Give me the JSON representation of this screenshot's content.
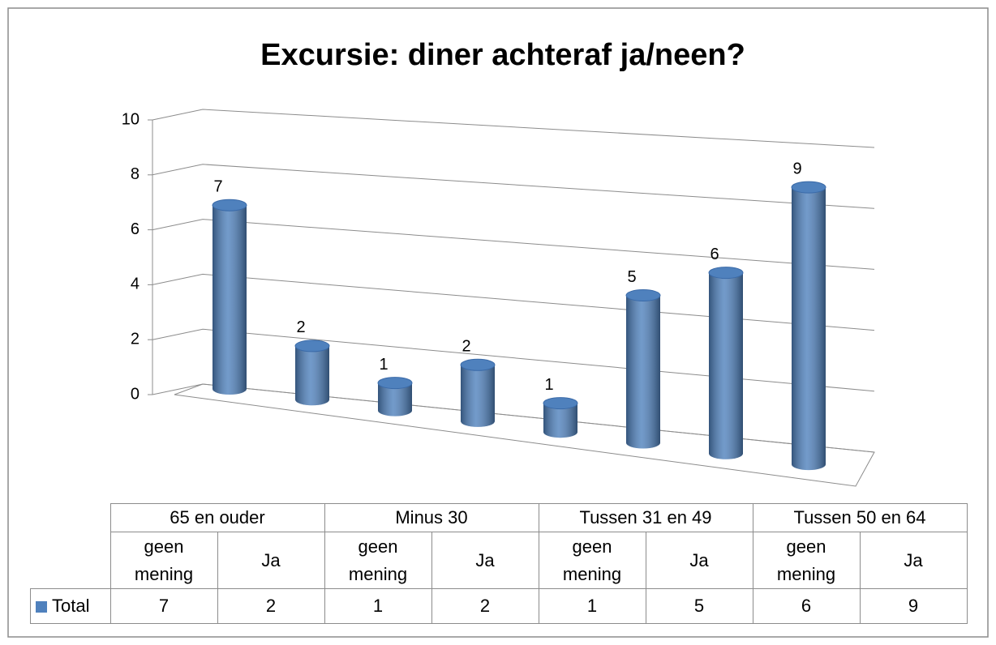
{
  "chart_data": {
    "type": "bar3d",
    "title": "Excursie: diner achteraf ja/neen?",
    "category_groups": [
      "65 en ouder",
      "Minus 30",
      "Tussen 31 en 49",
      "Tussen 50 en 64"
    ],
    "categories": [
      "geen mening",
      "Ja",
      "geen mening",
      "Ja",
      "geen mening",
      "Ja",
      "geen mening",
      "Ja"
    ],
    "series": [
      {
        "name": "Total",
        "color": "#4f81bd",
        "values": [
          7,
          2,
          1,
          2,
          1,
          5,
          6,
          9
        ]
      }
    ],
    "ylim": [
      0,
      10
    ],
    "yticks": [
      0,
      2,
      4,
      6,
      8,
      10
    ],
    "grid": true,
    "data_table": true
  }
}
